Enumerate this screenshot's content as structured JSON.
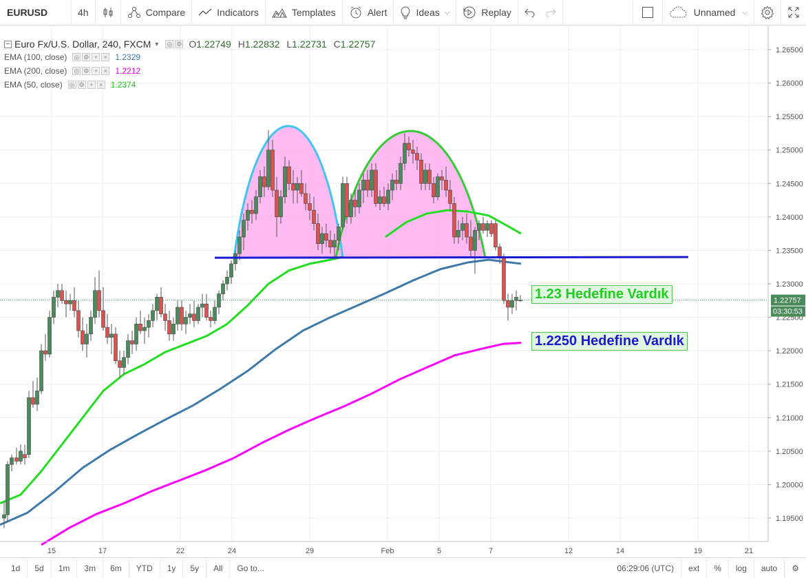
{
  "toolbar": {
    "symbol": "EURUSD",
    "interval": "4h",
    "compare": "Compare",
    "indicators": "Indicators",
    "templates": "Templates",
    "alert": "Alert",
    "ideas": "Ideas",
    "replay": "Replay",
    "layout_name": "Unnamed"
  },
  "legend": {
    "main_title": "Euro Fx/U.S. Dollar, 240, FXCM",
    "open_label": "O",
    "open": "1.22749",
    "high_label": "H",
    "high": "1.22832",
    "low_label": "L",
    "low": "1.22731",
    "close_label": "C",
    "close": "1.22757",
    "ema100": {
      "label": "EMA (100, close)",
      "value": "1.2329",
      "color": "#3d7aab"
    },
    "ema200": {
      "label": "EMA (200, close)",
      "value": "1.2212",
      "color": "#ff00ff"
    },
    "ema50": {
      "label": "EMA (50, close)",
      "value": "1.2374",
      "color": "#22cc22"
    }
  },
  "annotations": {
    "target1": "1.23 Hedefine Vardık",
    "target2": "1.2250 Hedefine Vardık"
  },
  "price_scale": {
    "labels": [
      "1.26500",
      "1.26000",
      "1.25500",
      "1.25000",
      "1.24500",
      "1.24000",
      "1.23500",
      "1.23000",
      "1.22500",
      "1.22000",
      "1.21500",
      "1.21000",
      "1.20500",
      "1.20000",
      "1.19500"
    ],
    "current_price": "1.22757",
    "countdown": "03:30:53"
  },
  "time_scale": {
    "labels": [
      "15",
      "17",
      "22",
      "24",
      "29",
      "Feb",
      "5",
      "7",
      "12",
      "14",
      "19",
      "21"
    ]
  },
  "bottom_bar": {
    "ranges": [
      "1d",
      "5d",
      "1m",
      "3m",
      "6m",
      "YTD",
      "1y",
      "5y",
      "All"
    ],
    "goto": "Go to...",
    "clock": "06:29:06 (UTC)",
    "ext": "ext",
    "percent": "%",
    "log": "log",
    "auto": "auto"
  },
  "colors": {
    "up": "#4b8a5a",
    "down": "#d9534f",
    "ema50": "#22dd22",
    "ema100": "#3d7aab",
    "ema200": "#ff00ff",
    "neckline": "#1a1ad0",
    "head_fill": "#ffb3f0",
    "left_arc": "#3fc6f0",
    "right_arc": "#33cc33",
    "target1_text": "#22cc22",
    "target2_text": "#1a1ad0"
  },
  "chart_data": {
    "type": "line",
    "y_range": [
      1.1915,
      1.2685
    ],
    "x_range": [
      0,
      1116
    ],
    "series": [
      {
        "name": "EMA (50, close)",
        "points": [
          [
            0,
            1.1972
          ],
          [
            30,
            1.1985
          ],
          [
            60,
            1.202
          ],
          [
            90,
            1.206
          ],
          [
            120,
            1.21
          ],
          [
            150,
            1.214
          ],
          [
            180,
            1.2165
          ],
          [
            210,
            1.218
          ],
          [
            240,
            1.2198
          ],
          [
            270,
            1.221
          ],
          [
            300,
            1.2222
          ],
          [
            330,
            1.224
          ],
          [
            360,
            1.2268
          ],
          [
            390,
            1.23
          ],
          [
            420,
            1.232
          ],
          [
            450,
            1.233
          ],
          [
            480,
            1.2336
          ],
          [
            497,
            1.234
          ]
        ]
      },
      {
        "name": "EMA (50, close)",
        "points": [
          [
            560,
            1.237
          ],
          [
            590,
            1.2392
          ],
          [
            620,
            1.2405
          ],
          [
            650,
            1.241
          ],
          [
            680,
            1.2408
          ],
          [
            710,
            1.2402
          ],
          [
            740,
            1.2385
          ],
          [
            757,
            1.2375
          ]
        ]
      },
      {
        "name": "EMA (100, close)",
        "points": [
          [
            0,
            1.194
          ],
          [
            40,
            1.1958
          ],
          [
            80,
            1.199
          ],
          [
            120,
            1.2025
          ],
          [
            160,
            1.2052
          ],
          [
            200,
            1.2075
          ],
          [
            240,
            1.2097
          ],
          [
            280,
            1.2118
          ],
          [
            320,
            1.2143
          ],
          [
            360,
            1.217
          ],
          [
            400,
            1.2202
          ],
          [
            440,
            1.223
          ],
          [
            480,
            1.225
          ],
          [
            520,
            1.2268
          ],
          [
            560,
            1.2286
          ],
          [
            600,
            1.2305
          ],
          [
            640,
            1.2322
          ],
          [
            680,
            1.2332
          ],
          [
            710,
            1.2336
          ],
          [
            757,
            1.233
          ]
        ]
      },
      {
        "name": "EMA (200, close)",
        "points": [
          [
            60,
            1.191
          ],
          [
            100,
            1.1935
          ],
          [
            140,
            1.1956
          ],
          [
            180,
            1.1972
          ],
          [
            220,
            1.199
          ],
          [
            260,
            1.2006
          ],
          [
            300,
            1.2022
          ],
          [
            340,
            1.204
          ],
          [
            380,
            1.2062
          ],
          [
            420,
            1.2082
          ],
          [
            460,
            1.21
          ],
          [
            500,
            1.2117
          ],
          [
            540,
            1.2136
          ],
          [
            580,
            1.2157
          ],
          [
            620,
            1.2175
          ],
          [
            660,
            1.2193
          ],
          [
            700,
            1.2203
          ],
          [
            730,
            1.221
          ],
          [
            757,
            1.2212
          ]
        ]
      },
      {
        "name": "neckline",
        "points": [
          [
            312,
            1.2339
          ],
          [
            1000,
            1.234
          ]
        ]
      }
    ],
    "candles": [
      [
        6,
        1.195,
        1.1975,
        1.1935,
        1.1955
      ],
      [
        11,
        1.1955,
        1.2035,
        1.1945,
        1.203
      ],
      [
        17,
        1.203,
        1.2045,
        1.202,
        1.204
      ],
      [
        24,
        1.204,
        1.2055,
        1.203,
        1.2035
      ],
      [
        30,
        1.2035,
        1.206,
        1.203,
        1.205
      ],
      [
        36,
        1.2045,
        1.206,
        1.203,
        1.204
      ],
      [
        42,
        1.2045,
        1.214,
        1.204,
        1.213
      ],
      [
        48,
        1.213,
        1.2155,
        1.2115,
        1.212
      ],
      [
        54,
        1.212,
        1.216,
        1.211,
        1.214
      ],
      [
        60,
        1.214,
        1.221,
        1.2135,
        1.22
      ],
      [
        66,
        1.22,
        1.2225,
        1.2185,
        1.2195
      ],
      [
        72,
        1.2195,
        1.226,
        1.219,
        1.225
      ],
      [
        78,
        1.225,
        1.229,
        1.224,
        1.228
      ],
      [
        84,
        1.228,
        1.23,
        1.2265,
        1.229
      ],
      [
        90,
        1.229,
        1.23,
        1.227,
        1.2275
      ],
      [
        96,
        1.2275,
        1.229,
        1.225,
        1.227
      ],
      [
        102,
        1.227,
        1.2285,
        1.226,
        1.2275
      ],
      [
        108,
        1.2275,
        1.2295,
        1.225,
        1.226
      ],
      [
        114,
        1.226,
        1.2275,
        1.222,
        1.223
      ],
      [
        120,
        1.223,
        1.225,
        1.22,
        1.221
      ],
      [
        126,
        1.221,
        1.224,
        1.219,
        1.2225
      ],
      [
        132,
        1.2225,
        1.226,
        1.2215,
        1.225
      ],
      [
        138,
        1.225,
        1.231,
        1.224,
        1.229
      ],
      [
        144,
        1.229,
        1.232,
        1.225,
        1.226
      ],
      [
        150,
        1.226,
        1.2295,
        1.223,
        1.2235
      ],
      [
        156,
        1.2235,
        1.2255,
        1.221,
        1.222
      ],
      [
        162,
        1.222,
        1.224,
        1.2195,
        1.2225
      ],
      [
        168,
        1.2225,
        1.2235,
        1.218,
        1.2185
      ],
      [
        174,
        1.2185,
        1.22,
        1.216,
        1.2175
      ],
      [
        180,
        1.2175,
        1.22,
        1.2165,
        1.219
      ],
      [
        186,
        1.219,
        1.2225,
        1.218,
        1.2215
      ],
      [
        192,
        1.2215,
        1.223,
        1.2195,
        1.221
      ],
      [
        198,
        1.221,
        1.225,
        1.22,
        1.224
      ],
      [
        204,
        1.224,
        1.226,
        1.2225,
        1.223
      ],
      [
        210,
        1.223,
        1.225,
        1.221,
        1.2235
      ],
      [
        216,
        1.2235,
        1.2255,
        1.222,
        1.2245
      ],
      [
        222,
        1.2245,
        1.227,
        1.2235,
        1.226
      ],
      [
        228,
        1.226,
        1.2285,
        1.2245,
        1.228
      ],
      [
        234,
        1.228,
        1.2295,
        1.225,
        1.2255
      ],
      [
        240,
        1.2255,
        1.227,
        1.223,
        1.2245
      ],
      [
        246,
        1.2245,
        1.226,
        1.2215,
        1.2225
      ],
      [
        252,
        1.2225,
        1.225,
        1.2215,
        1.224
      ],
      [
        258,
        1.224,
        1.2275,
        1.223,
        1.2265
      ],
      [
        264,
        1.2265,
        1.2275,
        1.223,
        1.224
      ],
      [
        270,
        1.224,
        1.226,
        1.2225,
        1.225
      ],
      [
        276,
        1.225,
        1.227,
        1.224,
        1.2255
      ],
      [
        282,
        1.2255,
        1.2275,
        1.2235,
        1.2245
      ],
      [
        288,
        1.2245,
        1.227,
        1.224,
        1.2265
      ],
      [
        294,
        1.2265,
        1.2285,
        1.225,
        1.227
      ],
      [
        300,
        1.227,
        1.2285,
        1.2245,
        1.225
      ],
      [
        306,
        1.225,
        1.226,
        1.2235,
        1.2245
      ],
      [
        312,
        1.2245,
        1.2275,
        1.224,
        1.2265
      ],
      [
        318,
        1.2265,
        1.229,
        1.2255,
        1.2285
      ],
      [
        324,
        1.2285,
        1.2305,
        1.2275,
        1.23
      ],
      [
        330,
        1.23,
        1.232,
        1.229,
        1.231
      ],
      [
        336,
        1.231,
        1.2335,
        1.23,
        1.233
      ],
      [
        342,
        1.233,
        1.235,
        1.232,
        1.2345
      ],
      [
        348,
        1.2345,
        1.238,
        1.2335,
        1.237
      ],
      [
        354,
        1.237,
        1.2405,
        1.235,
        1.2395
      ],
      [
        360,
        1.2395,
        1.242,
        1.238,
        1.241
      ],
      [
        366,
        1.241,
        1.2425,
        1.239,
        1.2405
      ],
      [
        372,
        1.2405,
        1.244,
        1.2395,
        1.243
      ],
      [
        378,
        1.243,
        1.247,
        1.242,
        1.246
      ],
      [
        384,
        1.246,
        1.2475,
        1.243,
        1.2445
      ],
      [
        390,
        1.2445,
        1.253,
        1.244,
        1.25
      ],
      [
        396,
        1.25,
        1.2515,
        1.243,
        1.244
      ],
      [
        402,
        1.244,
        1.246,
        1.237,
        1.24
      ],
      [
        408,
        1.24,
        1.244,
        1.239,
        1.243
      ],
      [
        414,
        1.243,
        1.249,
        1.242,
        1.2475
      ],
      [
        420,
        1.2475,
        1.2485,
        1.244,
        1.245
      ],
      [
        426,
        1.245,
        1.247,
        1.242,
        1.244
      ],
      [
        432,
        1.244,
        1.246,
        1.242,
        1.245
      ],
      [
        438,
        1.245,
        1.247,
        1.243,
        1.2435
      ],
      [
        444,
        1.2435,
        1.245,
        1.241,
        1.242
      ],
      [
        450,
        1.242,
        1.2435,
        1.2395,
        1.241
      ],
      [
        456,
        1.241,
        1.243,
        1.238,
        1.239
      ],
      [
        462,
        1.239,
        1.2405,
        1.235,
        1.236
      ],
      [
        468,
        1.236,
        1.2385,
        1.2345,
        1.2375
      ],
      [
        474,
        1.2375,
        1.239,
        1.2355,
        1.2365
      ],
      [
        480,
        1.2365,
        1.238,
        1.2345,
        1.2355
      ],
      [
        486,
        1.2355,
        1.2375,
        1.234,
        1.2365
      ],
      [
        492,
        1.2365,
        1.239,
        1.235,
        1.2385
      ],
      [
        498,
        1.2385,
        1.246,
        1.238,
        1.245
      ],
      [
        504,
        1.245,
        1.246,
        1.239,
        1.24
      ],
      [
        510,
        1.24,
        1.2435,
        1.239,
        1.2425
      ],
      [
        516,
        1.2425,
        1.244,
        1.24,
        1.2415
      ],
      [
        522,
        1.2415,
        1.245,
        1.2405,
        1.244
      ],
      [
        528,
        1.244,
        1.2465,
        1.242,
        1.2455
      ],
      [
        534,
        1.2455,
        1.247,
        1.243,
        1.244
      ],
      [
        540,
        1.244,
        1.248,
        1.243,
        1.247
      ],
      [
        546,
        1.247,
        1.248,
        1.2415,
        1.242
      ],
      [
        552,
        1.242,
        1.244,
        1.241,
        1.243
      ],
      [
        558,
        1.243,
        1.2445,
        1.2415,
        1.242
      ],
      [
        564,
        1.242,
        1.245,
        1.241,
        1.244
      ],
      [
        570,
        1.244,
        1.2465,
        1.2425,
        1.2455
      ],
      [
        576,
        1.2455,
        1.247,
        1.244,
        1.245
      ],
      [
        582,
        1.245,
        1.249,
        1.244,
        1.248
      ],
      [
        588,
        1.248,
        1.2525,
        1.247,
        1.251
      ],
      [
        594,
        1.251,
        1.252,
        1.249,
        1.25
      ],
      [
        600,
        1.25,
        1.2515,
        1.248,
        1.2495
      ],
      [
        606,
        1.2495,
        1.2505,
        1.247,
        1.2485
      ],
      [
        612,
        1.2485,
        1.2495,
        1.244,
        1.245
      ],
      [
        618,
        1.245,
        1.248,
        1.244,
        1.247
      ],
      [
        624,
        1.247,
        1.248,
        1.244,
        1.245
      ],
      [
        630,
        1.245,
        1.246,
        1.242,
        1.243
      ],
      [
        636,
        1.243,
        1.2465,
        1.2425,
        1.246
      ],
      [
        642,
        1.246,
        1.247,
        1.244,
        1.2455
      ],
      [
        648,
        1.2455,
        1.2475,
        1.243,
        1.244
      ],
      [
        654,
        1.244,
        1.2455,
        1.241,
        1.242
      ],
      [
        660,
        1.242,
        1.243,
        1.236,
        1.237
      ],
      [
        666,
        1.237,
        1.2395,
        1.236,
        1.238
      ],
      [
        672,
        1.238,
        1.24,
        1.2365,
        1.239
      ],
      [
        678,
        1.239,
        1.2405,
        1.236,
        1.237
      ],
      [
        684,
        1.237,
        1.2395,
        1.234,
        1.235
      ],
      [
        690,
        1.235,
        1.2385,
        1.2315,
        1.238
      ],
      [
        696,
        1.238,
        1.2395,
        1.2365,
        1.239
      ],
      [
        702,
        1.239,
        1.24,
        1.2375,
        1.238
      ],
      [
        708,
        1.238,
        1.2395,
        1.237,
        1.239
      ],
      [
        714,
        1.239,
        1.2395,
        1.237,
        1.2375
      ],
      [
        720,
        1.239,
        1.2395,
        1.235,
        1.2355
      ],
      [
        726,
        1.2355,
        1.236,
        1.233,
        1.234
      ],
      [
        732,
        1.234,
        1.2345,
        1.227,
        1.2275
      ],
      [
        738,
        1.2275,
        1.2285,
        1.2245,
        1.2265
      ],
      [
        744,
        1.2265,
        1.2285,
        1.2255,
        1.2275
      ],
      [
        750,
        1.2275,
        1.229,
        1.226,
        1.228
      ],
      [
        756,
        1.22749,
        1.22832,
        1.22731,
        1.22757
      ]
    ]
  }
}
